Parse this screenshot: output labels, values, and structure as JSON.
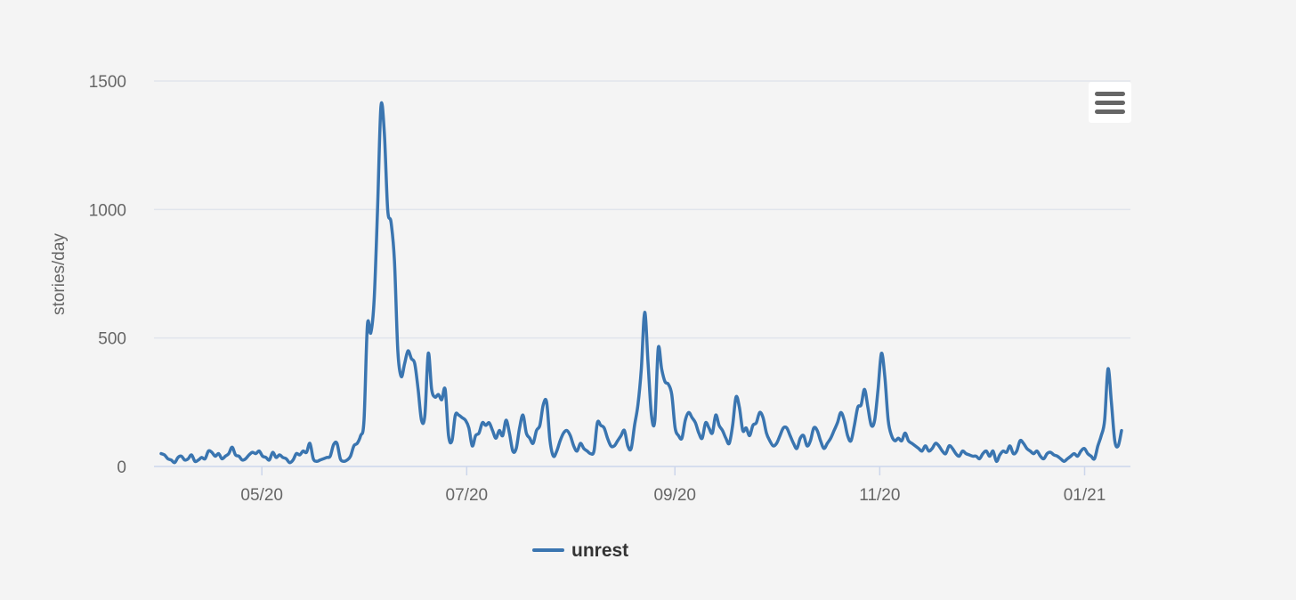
{
  "colors": {
    "background": "#f4f4f4",
    "gridline": "#e1e5ec",
    "axis_line": "#ccd6eb",
    "series": "#3a75b0",
    "tick_text": "#666666",
    "legend_text": "#333333"
  },
  "menu": {
    "icon": "hamburger-menu-icon"
  },
  "chart_data": {
    "type": "line",
    "title": "",
    "xlabel": "",
    "ylabel": "stories/day",
    "ylim": [
      0,
      1500
    ],
    "yticks": [
      "0",
      "500",
      "1000",
      "1500"
    ],
    "xticks": [
      {
        "label": "05/20",
        "date": "2020-05-01"
      },
      {
        "label": "07/20",
        "date": "2020-07-01"
      },
      {
        "label": "09/20",
        "date": "2020-09-01"
      },
      {
        "label": "11/20",
        "date": "2020-11-01"
      },
      {
        "label": "01/21",
        "date": "2021-01-01"
      }
    ],
    "x_start": "2020-04-01",
    "x_end": "2021-01-12",
    "grid": true,
    "legend": "bottom-center",
    "series": [
      {
        "name": "unrest",
        "values": [
          50,
          45,
          30,
          25,
          15,
          35,
          40,
          25,
          30,
          45,
          20,
          25,
          35,
          30,
          60,
          55,
          40,
          50,
          30,
          40,
          50,
          75,
          45,
          40,
          25,
          30,
          45,
          55,
          50,
          60,
          40,
          35,
          25,
          55,
          35,
          45,
          35,
          30,
          15,
          25,
          50,
          45,
          60,
          55,
          90,
          30,
          20,
          25,
          30,
          35,
          40,
          85,
          90,
          30,
          20,
          25,
          40,
          80,
          90,
          120,
          180,
          550,
          520,
          650,
          1000,
          1400,
          1300,
          1000,
          950,
          800,
          450,
          350,
          400,
          450,
          420,
          400,
          300,
          180,
          200,
          440,
          300,
          270,
          280,
          260,
          300,
          120,
          100,
          200,
          200,
          190,
          180,
          150,
          80,
          120,
          130,
          170,
          160,
          170,
          140,
          110,
          140,
          120,
          180,
          130,
          60,
          70,
          150,
          200,
          130,
          110,
          90,
          140,
          160,
          240,
          250,
          100,
          40,
          60,
          100,
          130,
          140,
          120,
          80,
          60,
          90,
          70,
          60,
          50,
          60,
          170,
          160,
          150,
          110,
          80,
          80,
          100,
          120,
          140,
          80,
          70,
          160,
          240,
          380,
          600,
          400,
          200,
          180,
          460,
          380,
          330,
          320,
          280,
          150,
          120,
          110,
          180,
          210,
          190,
          170,
          130,
          110,
          170,
          150,
          130,
          200,
          160,
          140,
          110,
          90,
          160,
          270,
          230,
          140,
          150,
          120,
          160,
          170,
          210,
          190,
          130,
          100,
          80,
          90,
          120,
          150,
          150,
          120,
          90,
          70,
          110,
          120,
          80,
          100,
          150,
          140,
          100,
          70,
          90,
          110,
          140,
          170,
          210,
          180,
          120,
          100,
          160,
          230,
          240,
          300,
          230,
          160,
          180,
          300,
          440,
          350,
          180,
          120,
          100,
          110,
          100,
          130,
          100,
          90,
          80,
          70,
          60,
          80,
          60,
          70,
          90,
          80,
          60,
          50,
          80,
          70,
          50,
          40,
          60,
          50,
          45,
          40,
          40,
          30,
          50,
          60,
          40,
          60,
          20,
          45,
          60,
          55,
          80,
          50,
          60,
          100,
          90,
          70,
          60,
          50,
          60,
          40,
          30,
          50,
          55,
          45,
          40,
          30,
          20,
          30,
          40,
          50,
          40,
          60,
          70,
          50,
          40,
          30,
          80,
          120,
          180,
          380,
          250,
          100,
          80,
          140
        ]
      }
    ]
  }
}
